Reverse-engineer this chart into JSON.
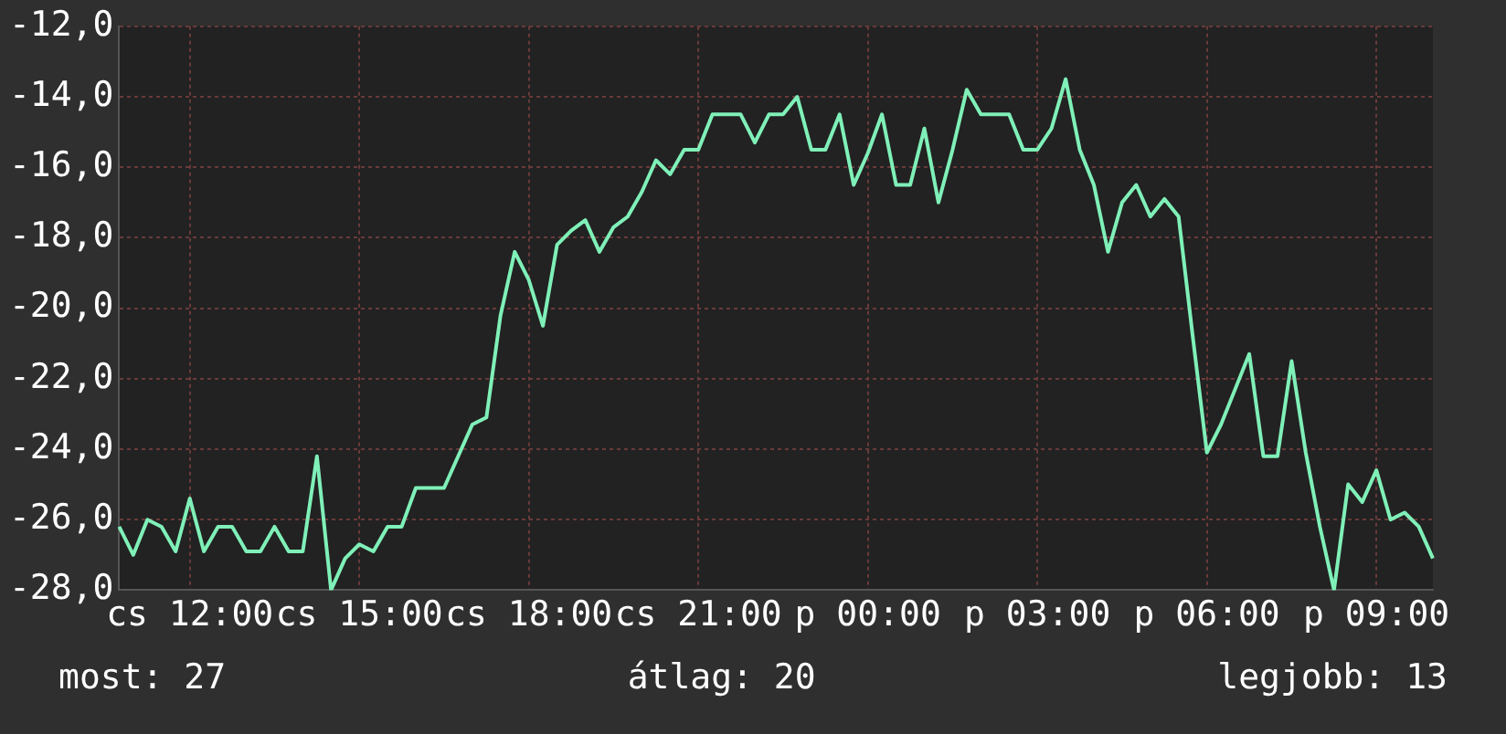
{
  "chart_data": {
    "type": "line",
    "grid": true,
    "legend": false,
    "marker": "none",
    "categories": [
      null,
      null,
      null,
      null,
      null,
      "cs 12:00",
      null,
      null,
      null,
      null,
      null,
      null,
      null,
      null,
      null,
      null,
      null,
      "cs 15:00",
      null,
      null,
      null,
      null,
      null,
      null,
      null,
      null,
      null,
      null,
      null,
      "cs 18:00",
      null,
      null,
      null,
      null,
      null,
      null,
      null,
      null,
      null,
      null,
      null,
      "cs 21:00",
      null,
      null,
      null,
      null,
      null,
      null,
      null,
      null,
      null,
      null,
      null,
      "p 00:00",
      null,
      null,
      null,
      null,
      null,
      null,
      null,
      null,
      null,
      null,
      null,
      "p 03:00",
      null,
      null,
      null,
      null,
      null,
      null,
      null,
      null,
      null,
      null,
      null,
      "p 06:00",
      null,
      null,
      null,
      null,
      null,
      null,
      null,
      null,
      null,
      null,
      null,
      "p 09:00",
      null,
      null,
      null,
      null
    ],
    "ylim": [
      -28,
      -12
    ],
    "yticks": [
      {
        "value": -28,
        "label": "-28,0"
      },
      {
        "value": -26,
        "label": "-26,0"
      },
      {
        "value": -24,
        "label": "-24,0"
      },
      {
        "value": -22,
        "label": "-22,0"
      },
      {
        "value": -20,
        "label": "-20,0"
      },
      {
        "value": -18,
        "label": "-18,0"
      },
      {
        "value": -16,
        "label": "-16,0"
      },
      {
        "value": -14,
        "label": "-14,0"
      },
      {
        "value": -12,
        "label": "-12,0"
      }
    ],
    "annotations": [
      "most: 27",
      "átlag: 20",
      "legjobb: 13"
    ],
    "series": [
      {
        "color": "#7ff0b8",
        "values": [
          -26.2,
          -27.0,
          -26.0,
          -26.2,
          -26.9,
          -25.4,
          -26.9,
          -26.2,
          -26.2,
          -26.9,
          -26.9,
          -26.2,
          -26.9,
          -26.9,
          -24.2,
          -28.0,
          -27.1,
          -26.7,
          -26.9,
          -26.2,
          -26.2,
          -25.1,
          -25.1,
          -25.1,
          -24.2,
          -23.3,
          -23.1,
          -20.2,
          -18.4,
          -19.2,
          -20.5,
          -18.2,
          -17.8,
          -17.5,
          -18.4,
          -17.7,
          -17.4,
          -16.7,
          -15.8,
          -16.2,
          -15.5,
          -15.5,
          -14.5,
          -14.5,
          -14.5,
          -15.3,
          -14.5,
          -14.5,
          -14.0,
          -15.5,
          -15.5,
          -14.5,
          -16.5,
          -15.6,
          -14.5,
          -16.5,
          -16.5,
          -14.9,
          -17.0,
          -15.5,
          -13.8,
          -14.5,
          -14.5,
          -14.5,
          -15.5,
          -15.5,
          -14.9,
          -13.5,
          -15.5,
          -16.5,
          -18.4,
          -17.0,
          -16.5,
          -17.4,
          -16.9,
          -17.4,
          -20.8,
          -24.1,
          -23.3,
          -22.3,
          -21.3,
          -24.2,
          -24.2,
          -21.5,
          -24.1,
          -26.2,
          -28.0,
          -25.0,
          -25.5,
          -24.6,
          -26.0,
          -25.8,
          -26.2,
          -27.1
        ]
      }
    ]
  }
}
